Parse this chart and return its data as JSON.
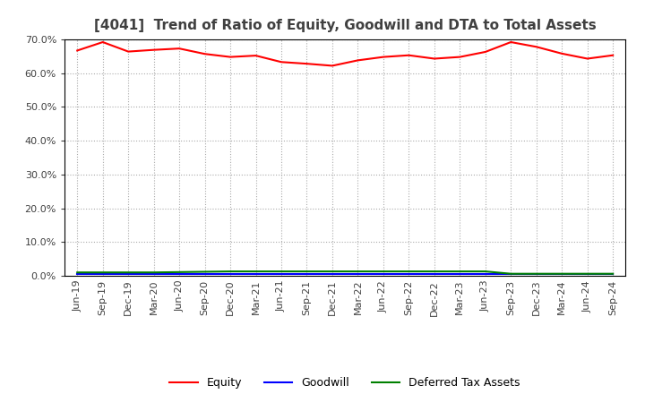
{
  "title": "[4041]  Trend of Ratio of Equity, Goodwill and DTA to Total Assets",
  "title_color": "#404040",
  "background_color": "#ffffff",
  "plot_bg_color": "#ffffff",
  "grid_color": "#aaaaaa",
  "xlabels": [
    "Jun-19",
    "Sep-19",
    "Dec-19",
    "Mar-20",
    "Jun-20",
    "Sep-20",
    "Dec-20",
    "Mar-21",
    "Jun-21",
    "Sep-21",
    "Dec-21",
    "Mar-22",
    "Jun-22",
    "Sep-22",
    "Dec-22",
    "Mar-23",
    "Jun-23",
    "Sep-23",
    "Dec-23",
    "Mar-24",
    "Jun-24",
    "Sep-24"
  ],
  "equity": [
    0.667,
    0.692,
    0.664,
    0.669,
    0.673,
    0.657,
    0.648,
    0.652,
    0.633,
    0.628,
    0.622,
    0.638,
    0.648,
    0.653,
    0.643,
    0.648,
    0.663,
    0.692,
    0.678,
    0.658,
    0.643,
    0.653
  ],
  "goodwill": [
    0.004,
    0.004,
    0.004,
    0.004,
    0.004,
    0.004,
    0.004,
    0.004,
    0.004,
    0.004,
    0.004,
    0.004,
    0.004,
    0.004,
    0.004,
    0.004,
    0.004,
    0.004,
    0.004,
    0.004,
    0.004,
    0.004
  ],
  "dta": [
    0.01,
    0.01,
    0.01,
    0.01,
    0.011,
    0.012,
    0.013,
    0.013,
    0.013,
    0.013,
    0.013,
    0.013,
    0.013,
    0.013,
    0.013,
    0.013,
    0.013,
    0.006,
    0.006,
    0.006,
    0.006,
    0.006
  ],
  "equity_color": "#ff0000",
  "goodwill_color": "#0000ff",
  "dta_color": "#008000",
  "ylim": [
    0.0,
    0.7
  ],
  "yticks": [
    0.0,
    0.1,
    0.2,
    0.3,
    0.4,
    0.5,
    0.6,
    0.7
  ],
  "legend_labels": [
    "Equity",
    "Goodwill",
    "Deferred Tax Assets"
  ]
}
